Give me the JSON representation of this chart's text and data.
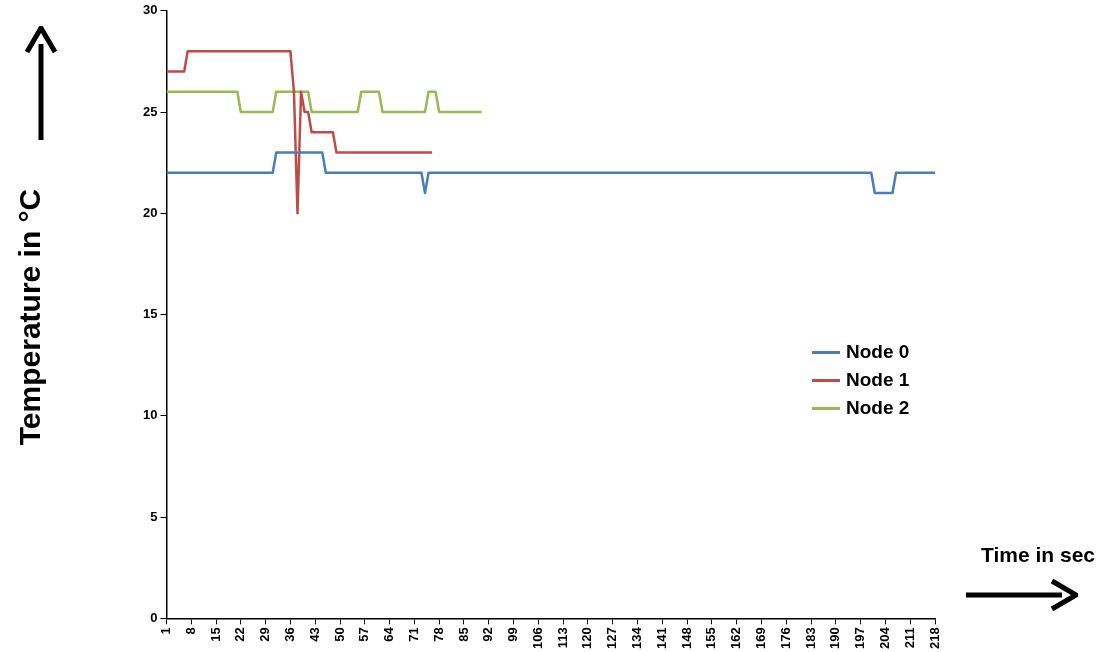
{
  "chart_data": {
    "type": "line",
    "xlabel": "Time in sec",
    "ylabel": "Temperature in °C",
    "xlim": [
      1,
      218
    ],
    "xticks": [
      1,
      8,
      15,
      22,
      29,
      36,
      43,
      50,
      57,
      64,
      71,
      78,
      85,
      92,
      99,
      106,
      113,
      120,
      127,
      134,
      141,
      148,
      155,
      162,
      169,
      176,
      183,
      190,
      197,
      204,
      211,
      218
    ],
    "ylim": [
      0,
      30
    ],
    "yticks": [
      0,
      5,
      10,
      15,
      20,
      25,
      30
    ],
    "grid": false,
    "legend": "right",
    "marker": "none",
    "line_style": "solid",
    "series": [
      {
        "name": "Node 0",
        "color": "#4a7ebb",
        "x": [
          1,
          31,
          32,
          45,
          46,
          73,
          74,
          75,
          200,
          201,
          206,
          207,
          218
        ],
        "values": [
          22,
          22,
          23,
          23,
          22,
          22,
          21,
          22,
          22,
          21,
          21,
          22,
          22
        ]
      },
      {
        "name": "Node 1",
        "color": "#be4b48",
        "x": [
          1,
          6,
          7,
          36,
          37,
          38,
          39,
          40,
          41,
          42,
          48,
          49,
          76
        ],
        "values": [
          27,
          27,
          28,
          28,
          26,
          20,
          26,
          25,
          25,
          24,
          24,
          23,
          23
        ]
      },
      {
        "name": "Node 2",
        "color": "#98b954",
        "x": [
          1,
          21,
          22,
          31,
          32,
          41,
          42,
          55,
          56,
          61,
          62,
          74,
          75,
          77,
          78,
          90
        ],
        "values": [
          26,
          26,
          25,
          25,
          26,
          26,
          25,
          25,
          26,
          26,
          25,
          25,
          26,
          26,
          25,
          25
        ]
      }
    ]
  }
}
